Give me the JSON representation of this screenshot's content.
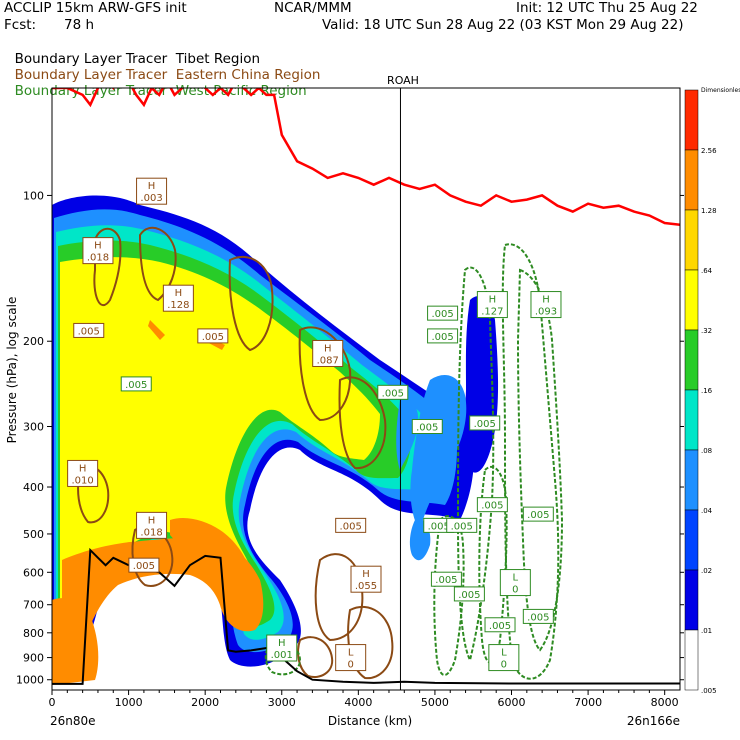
{
  "header": {
    "model": "ACCLIP 15km ARW-GFS init",
    "center": "NCAR/MMM",
    "init": "Init: 12 UTC Thu 25 Aug 22",
    "fcst_label": "Fcst:",
    "fcst_value": "78 h",
    "valid": "Valid: 18 UTC Sun 28 Aug 22 (03 KST Mon 29 Aug 22)"
  },
  "legend": [
    {
      "prefix": "Boundary Layer Tracer",
      "region": "Tibet Region",
      "color": "#000000"
    },
    {
      "prefix": "Boundary Layer Tracer",
      "region": "Eastern China Region",
      "color": "#8b4a14"
    },
    {
      "prefix": "Boundary Layer Tracer",
      "region": "West Pacific Region",
      "color": "#2e8b22"
    }
  ],
  "chart_data": {
    "type": "contour",
    "xlabel": "Distance (km)",
    "ylabel": "Pressure (hPa), log scale",
    "x_ticks": [
      "0",
      "1000",
      "2000",
      "3000",
      "4000",
      "5000",
      "6000",
      "7000",
      "8000"
    ],
    "y_ticks": [
      "100",
      "200",
      "300",
      "400",
      "500",
      "600",
      "700",
      "800",
      "900",
      "1000"
    ],
    "xlim": [
      0,
      8200
    ],
    "ylim": [
      1050,
      60
    ],
    "left_endpoint": "26n80e",
    "right_endpoint": "26n166e",
    "station": {
      "name": "ROAH",
      "x": 4550
    },
    "colorbar_top_label": "Dimensionless",
    "colorbar_levels": [
      {
        "label": "2.56",
        "color": "#ff2a00"
      },
      {
        "label": "1.28",
        "color": "#ff8c00"
      },
      {
        "label": ".64",
        "color": "#ffd700"
      },
      {
        "label": ".32",
        "color": "#ffff00"
      },
      {
        "label": ".16",
        "color": "#28cc28"
      },
      {
        "label": ".08",
        "color": "#00e6c8"
      },
      {
        "label": ".04",
        "color": "#1e90ff"
      },
      {
        "label": ".02",
        "color": "#0044ff"
      },
      {
        "label": ".01",
        "color": "#0000e6"
      },
      {
        "label": ".005",
        "color": "#ffffff"
      }
    ],
    "tropopause": {
      "color": "#ff0000",
      "x": [
        0,
        200,
        400,
        500,
        600,
        700,
        800,
        900,
        1000,
        1100,
        1200,
        1300,
        1400,
        1500,
        1600,
        1700,
        1800,
        1900,
        2000,
        2100,
        2200,
        2300,
        2400,
        2500,
        2600,
        2700,
        2800,
        2900,
        3000,
        3200,
        3400,
        3600,
        3800,
        4000,
        4200,
        4400,
        4600,
        4800,
        5000,
        5200,
        5400,
        5600,
        5800,
        6000,
        6200,
        6400,
        6600,
        6800,
        7000,
        7200,
        7400,
        7600,
        7800,
        8000,
        8200
      ],
      "p": [
        60,
        60,
        62,
        65,
        60,
        58,
        60,
        55,
        58,
        62,
        65,
        60,
        62,
        58,
        62,
        60,
        58,
        58,
        60,
        62,
        60,
        62,
        58,
        60,
        62,
        60,
        62,
        62,
        75,
        85,
        88,
        92,
        90,
        92,
        95,
        92,
        95,
        97,
        95,
        100,
        103,
        105,
        100,
        103,
        102,
        100,
        105,
        108,
        104,
        106,
        105,
        108,
        110,
        114,
        115
      ]
    },
    "terrain": {
      "color": "#000000",
      "x": [
        0,
        400,
        500,
        600,
        700,
        800,
        1000,
        1200,
        1400,
        1600,
        1800,
        2000,
        2200,
        2300,
        2400,
        2600,
        2800,
        3000,
        3200,
        3400,
        3800,
        4200,
        4600,
        5000,
        6000,
        7000,
        8200
      ],
      "p": [
        1020,
        1020,
        540,
        560,
        580,
        560,
        580,
        590,
        600,
        640,
        580,
        555,
        560,
        870,
        875,
        870,
        860,
        900,
        960,
        1000,
        1010,
        1015,
        1010,
        1015,
        1018,
        1018,
        1018
      ]
    },
    "highs": [
      {
        "x": 1300,
        "p": 98,
        "label": ".003",
        "color": "#8b4a14"
      },
      {
        "x": 600,
        "p": 130,
        "label": ".018",
        "color": "#8b4a14"
      },
      {
        "x": 1650,
        "p": 163,
        "label": ".128",
        "color": "#8b4a14"
      },
      {
        "x": 3600,
        "p": 212,
        "label": ".087",
        "color": "#8b4a14"
      },
      {
        "x": 5750,
        "p": 168,
        "label": ".127",
        "color": "#2e8b22"
      },
      {
        "x": 6450,
        "p": 168,
        "label": ".093",
        "color": "#2e8b22"
      },
      {
        "x": 400,
        "p": 375,
        "label": ".010",
        "color": "#8b4a14"
      },
      {
        "x": 1300,
        "p": 480,
        "label": ".018",
        "color": "#8b4a14"
      },
      {
        "x": 4100,
        "p": 620,
        "label": ".055",
        "color": "#8b4a14"
      },
      {
        "x": 3000,
        "p": 860,
        "label": ".001",
        "color": "#2e8b22"
      }
    ],
    "lows": [
      {
        "x": 3900,
        "p": 900,
        "label": "0",
        "color": "#8b4a14"
      },
      {
        "x": 6050,
        "p": 630,
        "label": "0",
        "color": "#2e8b22"
      },
      {
        "x": 5900,
        "p": 900,
        "label": "0",
        "color": "#2e8b22"
      }
    ],
    "value_labels": [
      {
        "x": 480,
        "p": 190,
        "label": ".005",
        "color": "#8b4a14"
      },
      {
        "x": 1100,
        "p": 245,
        "label": ".005",
        "color": "#2e8b22"
      },
      {
        "x": 2100,
        "p": 195,
        "label": ".005",
        "color": "#8b4a14"
      },
      {
        "x": 5650,
        "p": 295,
        "label": ".005",
        "color": "#2e8b22"
      },
      {
        "x": 4450,
        "p": 255,
        "label": ".005",
        "color": "#2e8b22"
      },
      {
        "x": 5100,
        "p": 175,
        "label": ".005",
        "color": "#2e8b22"
      },
      {
        "x": 5100,
        "p": 195,
        "label": ".005",
        "color": "#2e8b22"
      },
      {
        "x": 4900,
        "p": 300,
        "label": ".005",
        "color": "#2e8b22"
      },
      {
        "x": 3900,
        "p": 480,
        "label": ".005",
        "color": "#8b4a14"
      },
      {
        "x": 5050,
        "p": 480,
        "label": ".005",
        "color": "#2e8b22"
      },
      {
        "x": 5350,
        "p": 480,
        "label": ".005",
        "color": "#2e8b22"
      },
      {
        "x": 5750,
        "p": 435,
        "label": ".005",
        "color": "#2e8b22"
      },
      {
        "x": 6350,
        "p": 455,
        "label": ".005",
        "color": "#2e8b22"
      },
      {
        "x": 5150,
        "p": 620,
        "label": ".005",
        "color": "#2e8b22"
      },
      {
        "x": 5450,
        "p": 665,
        "label": ".005",
        "color": "#2e8b22"
      },
      {
        "x": 5850,
        "p": 770,
        "label": ".005",
        "color": "#2e8b22"
      },
      {
        "x": 6350,
        "p": 740,
        "label": ".005",
        "color": "#2e8b22"
      },
      {
        "x": 1200,
        "p": 580,
        "label": ".005",
        "color": "#8b4a14"
      }
    ]
  }
}
